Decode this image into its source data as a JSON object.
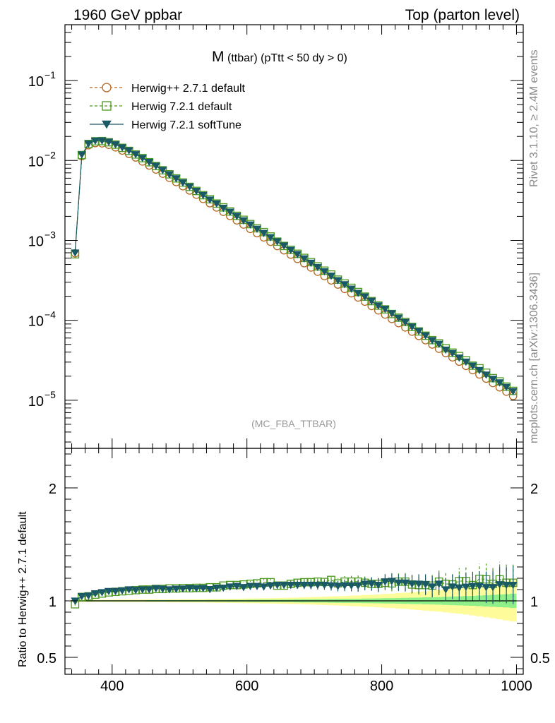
{
  "header": {
    "left": "1960 GeV ppbar",
    "right": "Top (parton level)"
  },
  "side_labels": {
    "rivet": "Rivet 3.1.10, ≥ 2.4M events",
    "mcplots": "mcplots.cern.ch [arXiv:1306.3436]"
  },
  "chart_data": [
    {
      "type": "line",
      "panel": "main",
      "title": "M",
      "title_sub": "(ttbar) (pTtt < 50 dy > 0)",
      "watermark": "(MC_FBA_TTBAR)",
      "xlabel": "",
      "ylabel": "",
      "xlim": [
        330,
        1010
      ],
      "ylim": [
        2.5e-06,
        0.5
      ],
      "yscale": "log",
      "x_ticks": [
        "400",
        "600",
        "800",
        "1000"
      ],
      "y_tick_labels": [
        {
          "mant": "10",
          "exp": "−1",
          "value": 0.1
        },
        {
          "mant": "10",
          "exp": "−2",
          "value": 0.01
        },
        {
          "mant": "10",
          "exp": "−3",
          "value": 0.001
        },
        {
          "mant": "10",
          "exp": "−4",
          "value": 0.0001
        },
        {
          "mant": "10",
          "exp": "−5",
          "value": 1e-05
        }
      ],
      "legend_position": "top-left",
      "x": [
        345,
        355,
        365,
        375,
        385,
        395,
        405,
        415,
        425,
        435,
        445,
        455,
        465,
        475,
        485,
        495,
        505,
        515,
        525,
        535,
        545,
        555,
        565,
        575,
        585,
        595,
        605,
        615,
        625,
        635,
        645,
        655,
        665,
        675,
        685,
        695,
        705,
        715,
        725,
        735,
        745,
        755,
        765,
        775,
        785,
        795,
        805,
        815,
        825,
        835,
        845,
        855,
        865,
        875,
        885,
        895,
        905,
        915,
        925,
        935,
        945,
        955,
        965,
        975,
        985,
        995
      ],
      "series": [
        {
          "name": "Herwig++ 2.7.1 default",
          "color": "#b5651d",
          "marker": "circle",
          "values": [
            0.00069,
            0.0113,
            0.0155,
            0.0165,
            0.0164,
            0.0157,
            0.0146,
            0.0133,
            0.0121,
            0.0109,
            0.00971,
            0.00865,
            0.0077,
            0.00683,
            0.00606,
            0.00537,
            0.00476,
            0.00421,
            0.00373,
            0.0033,
            0.00292,
            0.00258,
            0.00228,
            0.00202,
            0.00178,
            0.00158,
            0.00139,
            0.00123,
            0.00109,
            0.000961,
            0.000849,
            0.000751,
            0.000663,
            0.000586,
            0.000518,
            0.000458,
            0.000405,
            0.000358,
            0.000316,
            0.00028,
            0.000247,
            0.000218,
            0.000193,
            0.000171,
            0.000151,
            0.000133,
            0.000118,
            0.000104,
            9.22e-05,
            8.15e-05,
            7.21e-05,
            6.37e-05,
            5.63e-05,
            4.98e-05,
            4.4e-05,
            3.89e-05,
            3.44e-05,
            3.04e-05,
            2.69e-05,
            2.38e-05,
            2.1e-05,
            1.86e-05,
            1.64e-05,
            1.45e-05,
            1.28e-05,
            1.13e-05
          ]
        },
        {
          "name": "Herwig 7.2.1 default",
          "color": "#4c9a1f",
          "marker": "square",
          "values": [
            0.00067,
            0.0117,
            0.0161,
            0.0174,
            0.0175,
            0.0169,
            0.0158,
            0.0144,
            0.0132,
            0.0119,
            0.0107,
            0.00951,
            0.00851,
            0.00754,
            0.00672,
            0.00597,
            0.0053,
            0.00468,
            0.00416,
            0.00368,
            0.00327,
            0.00289,
            0.00259,
            0.0023,
            0.00203,
            0.00181,
            0.0016,
            0.00142,
            0.00127,
            0.00112,
            0.000965,
            0.000853,
            0.000763,
            0.00068,
            0.000604,
            0.000534,
            0.000473,
            0.000418,
            0.000374,
            0.000323,
            0.000289,
            0.000255,
            0.000226,
            0.000198,
            0.000174,
            0.000153,
            0.000137,
            0.00012,
            0.000108,
            9.53e-05,
            8.26e-05,
            7.26e-05,
            6.42e-05,
            5.65e-05,
            5.15e-05,
            4.47e-05,
            3.94e-05,
            3.57e-05,
            3.16e-05,
            2.71e-05,
            2.51e-05,
            2.21e-05,
            1.89e-05,
            1.72e-05,
            1.48e-05,
            1.31e-05
          ]
        },
        {
          "name": "Herwig 7.2.1 softTune",
          "color": "#1a5966",
          "marker": "triangle-down",
          "values": [
            0.0007,
            0.0118,
            0.0162,
            0.0176,
            0.0177,
            0.017,
            0.0158,
            0.0145,
            0.0133,
            0.0119,
            0.0107,
            0.00952,
            0.00854,
            0.00756,
            0.00667,
            0.00594,
            0.00527,
            0.00469,
            0.00414,
            0.00367,
            0.00322,
            0.00288,
            0.00254,
            0.00227,
            0.00201,
            0.00177,
            0.00157,
            0.00139,
            0.00123,
            0.00109,
            0.000967,
            0.000856,
            0.000755,
            0.000668,
            0.000591,
            0.000522,
            0.000461,
            0.000408,
            0.000359,
            0.000316,
            0.000281,
            0.000247,
            0.000219,
            0.000197,
            0.000174,
            0.000152,
            0.000138,
            0.000122,
            0.000107,
            9.45e-05,
            8.28e-05,
            7.31e-05,
            6.43e-05,
            5.61e-05,
            5.05e-05,
            4.27e-05,
            3.87e-05,
            3.39e-05,
            3.02e-05,
            2.69e-05,
            2.37e-05,
            2.08e-05,
            1.84e-05,
            1.66e-05,
            1.46e-05,
            1.29e-05
          ]
        }
      ]
    },
    {
      "type": "line",
      "panel": "ratio",
      "xlabel": "",
      "ylabel": "Ratio to Herwig++ 2.7.1 default",
      "xlim": [
        330,
        1010
      ],
      "ylim": [
        0.35,
        2.35
      ],
      "y_ticks": [
        "0.5",
        "1",
        "2"
      ],
      "x_ticks": [
        "400",
        "600",
        "800",
        "1000"
      ],
      "x": [
        345,
        355,
        365,
        375,
        385,
        395,
        405,
        415,
        425,
        435,
        445,
        455,
        465,
        475,
        485,
        495,
        505,
        515,
        525,
        535,
        545,
        555,
        565,
        575,
        585,
        595,
        605,
        615,
        625,
        635,
        645,
        655,
        665,
        675,
        685,
        695,
        705,
        715,
        725,
        735,
        745,
        755,
        765,
        775,
        785,
        795,
        805,
        815,
        825,
        835,
        845,
        855,
        865,
        875,
        885,
        895,
        905,
        915,
        925,
        935,
        945,
        955,
        965,
        975,
        985,
        995
      ],
      "band_1sigma": [
        0.005,
        0.005,
        0.005,
        0.005,
        0.005,
        0.005,
        0.005,
        0.005,
        0.005,
        0.005,
        0.005,
        0.006,
        0.006,
        0.006,
        0.006,
        0.006,
        0.007,
        0.007,
        0.007,
        0.007,
        0.008,
        0.008,
        0.008,
        0.009,
        0.009,
        0.009,
        0.01,
        0.01,
        0.011,
        0.011,
        0.011,
        0.012,
        0.012,
        0.013,
        0.014,
        0.014,
        0.015,
        0.015,
        0.016,
        0.017,
        0.018,
        0.018,
        0.019,
        0.02,
        0.021,
        0.022,
        0.023,
        0.024,
        0.025,
        0.026,
        0.028,
        0.029,
        0.031,
        0.032,
        0.034,
        0.036,
        0.038,
        0.04,
        0.042,
        0.044,
        0.047,
        0.05,
        0.053,
        0.056,
        0.059,
        0.063
      ],
      "band_2sigma": [
        0.01,
        0.01,
        0.01,
        0.01,
        0.01,
        0.01,
        0.011,
        0.011,
        0.011,
        0.011,
        0.011,
        0.012,
        0.012,
        0.012,
        0.013,
        0.013,
        0.014,
        0.014,
        0.015,
        0.015,
        0.016,
        0.017,
        0.017,
        0.018,
        0.019,
        0.02,
        0.021,
        0.022,
        0.023,
        0.024,
        0.025,
        0.027,
        0.028,
        0.029,
        0.031,
        0.033,
        0.035,
        0.037,
        0.039,
        0.041,
        0.043,
        0.046,
        0.048,
        0.051,
        0.054,
        0.057,
        0.061,
        0.064,
        0.068,
        0.072,
        0.076,
        0.081,
        0.086,
        0.091,
        0.096,
        0.102,
        0.108,
        0.114,
        0.121,
        0.129,
        0.137,
        0.145,
        0.154,
        0.163,
        0.173,
        0.183
      ],
      "series": [
        {
          "name": "Herwig 7.2.1 default",
          "color": "#4c9a1f",
          "marker": "square",
          "values": [
            0.97,
            1.035,
            1.04,
            1.055,
            1.065,
            1.075,
            1.08,
            1.085,
            1.09,
            1.095,
            1.1,
            1.1,
            1.105,
            1.105,
            1.11,
            1.11,
            1.113,
            1.112,
            1.115,
            1.115,
            1.12,
            1.12,
            1.135,
            1.14,
            1.14,
            1.145,
            1.15,
            1.155,
            1.165,
            1.165,
            1.135,
            1.135,
            1.15,
            1.16,
            1.165,
            1.165,
            1.17,
            1.167,
            1.185,
            1.155,
            1.17,
            1.17,
            1.17,
            1.16,
            1.15,
            1.15,
            1.16,
            1.155,
            1.17,
            1.17,
            1.145,
            1.14,
            1.14,
            1.135,
            1.17,
            1.15,
            1.145,
            1.175,
            1.175,
            1.14,
            1.195,
            1.19,
            1.15,
            1.19,
            1.16,
            1.16
          ],
          "errors": [
            0.012,
            0.012,
            0.012,
            0.012,
            0.012,
            0.012,
            0.013,
            0.013,
            0.013,
            0.013,
            0.014,
            0.014,
            0.014,
            0.015,
            0.015,
            0.016,
            0.016,
            0.017,
            0.017,
            0.018,
            0.019,
            0.02,
            0.021,
            0.022,
            0.023,
            0.024,
            0.025,
            0.026,
            0.027,
            0.028,
            0.03,
            0.031,
            0.032,
            0.034,
            0.036,
            0.038,
            0.04,
            0.042,
            0.044,
            0.046,
            0.049,
            0.051,
            0.054,
            0.057,
            0.06,
            0.063,
            0.066,
            0.07,
            0.073,
            0.077,
            0.081,
            0.085,
            0.09,
            0.094,
            0.099,
            0.104,
            0.109,
            0.115,
            0.121,
            0.127,
            0.133,
            0.14,
            0.147,
            0.155,
            0.162,
            0.17
          ]
        },
        {
          "name": "Herwig 7.2.1 softTune",
          "color": "#1a5966",
          "marker": "triangle-down",
          "values": [
            1.0,
            1.04,
            1.045,
            1.065,
            1.075,
            1.085,
            1.085,
            1.09,
            1.1,
            1.095,
            1.1,
            1.1,
            1.11,
            1.105,
            1.1,
            1.105,
            1.107,
            1.112,
            1.11,
            1.112,
            1.102,
            1.115,
            1.115,
            1.125,
            1.13,
            1.12,
            1.13,
            1.13,
            1.125,
            1.135,
            1.14,
            1.14,
            1.14,
            1.14,
            1.14,
            1.14,
            1.14,
            1.14,
            1.135,
            1.13,
            1.135,
            1.135,
            1.135,
            1.15,
            1.15,
            1.14,
            1.17,
            1.175,
            1.16,
            1.16,
            1.15,
            1.15,
            1.145,
            1.125,
            1.15,
            1.1,
            1.125,
            1.115,
            1.123,
            1.13,
            1.13,
            1.12,
            1.12,
            1.145,
            1.14,
            1.14
          ],
          "errors": [
            0.012,
            0.012,
            0.012,
            0.012,
            0.012,
            0.012,
            0.013,
            0.013,
            0.013,
            0.013,
            0.014,
            0.014,
            0.014,
            0.015,
            0.015,
            0.016,
            0.016,
            0.017,
            0.017,
            0.018,
            0.019,
            0.02,
            0.021,
            0.022,
            0.023,
            0.024,
            0.025,
            0.026,
            0.027,
            0.028,
            0.03,
            0.031,
            0.032,
            0.034,
            0.036,
            0.038,
            0.04,
            0.042,
            0.044,
            0.046,
            0.049,
            0.051,
            0.054,
            0.057,
            0.06,
            0.063,
            0.066,
            0.07,
            0.073,
            0.077,
            0.081,
            0.085,
            0.09,
            0.094,
            0.099,
            0.104,
            0.109,
            0.115,
            0.121,
            0.127,
            0.133,
            0.14,
            0.147,
            0.155,
            0.162,
            0.17
          ]
        }
      ]
    }
  ]
}
